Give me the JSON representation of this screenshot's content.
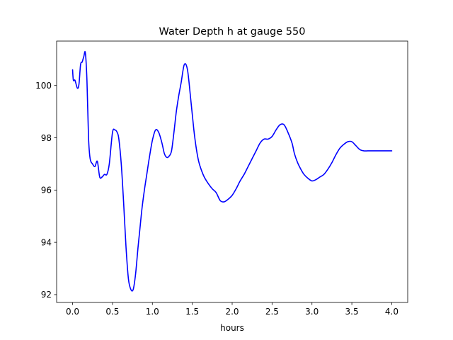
{
  "chart_data": {
    "type": "line",
    "title": "Water Depth h at gauge 550",
    "xlabel": "hours",
    "ylabel": "",
    "xlim": [
      -0.2,
      4.2
    ],
    "ylim": [
      91.7,
      101.7
    ],
    "x_ticks": [
      0.0,
      0.5,
      1.0,
      1.5,
      2.0,
      2.5,
      3.0,
      3.5,
      4.0
    ],
    "x_tick_labels": [
      "0.0",
      "0.5",
      "1.0",
      "1.5",
      "2.0",
      "2.5",
      "3.0",
      "3.5",
      "4.0"
    ],
    "y_ticks": [
      92,
      94,
      96,
      98,
      100
    ],
    "y_tick_labels": [
      "92",
      "94",
      "96",
      "98",
      "100"
    ],
    "grid": false,
    "legend": "none",
    "series": [
      {
        "color": "#0000ff",
        "x": [
          0.0,
          0.01,
          0.03,
          0.06,
          0.08,
          0.1,
          0.12,
          0.14,
          0.16,
          0.18,
          0.2,
          0.22,
          0.25,
          0.28,
          0.31,
          0.34,
          0.37,
          0.4,
          0.43,
          0.46,
          0.5,
          0.53,
          0.56,
          0.58,
          0.61,
          0.64,
          0.67,
          0.7,
          0.73,
          0.76,
          0.79,
          0.82,
          0.84,
          0.87,
          0.9,
          0.93,
          0.96,
          1.0,
          1.04,
          1.08,
          1.12,
          1.15,
          1.18,
          1.21,
          1.24,
          1.27,
          1.3,
          1.33,
          1.36,
          1.4,
          1.44,
          1.48,
          1.52,
          1.55,
          1.58,
          1.61,
          1.65,
          1.7,
          1.75,
          1.8,
          1.85,
          1.9,
          1.95,
          2.0,
          2.05,
          2.1,
          2.15,
          2.2,
          2.25,
          2.3,
          2.35,
          2.4,
          2.45,
          2.5,
          2.55,
          2.6,
          2.65,
          2.7,
          2.75,
          2.78,
          2.82,
          2.86,
          2.9,
          2.95,
          3.0,
          3.05,
          3.1,
          3.15,
          3.2,
          3.25,
          3.3,
          3.35,
          3.4,
          3.45,
          3.5,
          3.55,
          3.6,
          3.65,
          3.7,
          3.75,
          3.8,
          3.85,
          3.9,
          3.95,
          4.0
        ],
        "y": [
          100.6,
          100.2,
          100.2,
          99.9,
          100.05,
          100.8,
          100.9,
          101.1,
          101.25,
          100.2,
          98.0,
          97.2,
          97.0,
          96.9,
          97.1,
          96.5,
          96.5,
          96.6,
          96.6,
          97.0,
          98.2,
          98.3,
          98.2,
          97.95,
          97.0,
          95.5,
          93.8,
          92.6,
          92.2,
          92.2,
          92.8,
          93.8,
          94.4,
          95.3,
          96.0,
          96.6,
          97.2,
          97.9,
          98.3,
          98.2,
          97.8,
          97.4,
          97.25,
          97.3,
          97.5,
          98.2,
          99.0,
          99.6,
          100.1,
          100.8,
          100.6,
          99.5,
          98.3,
          97.6,
          97.1,
          96.8,
          96.5,
          96.25,
          96.05,
          95.9,
          95.6,
          95.55,
          95.65,
          95.8,
          96.05,
          96.35,
          96.6,
          96.9,
          97.2,
          97.5,
          97.8,
          97.95,
          97.95,
          98.05,
          98.3,
          98.5,
          98.5,
          98.2,
          97.8,
          97.4,
          97.05,
          96.8,
          96.6,
          96.45,
          96.35,
          96.4,
          96.5,
          96.6,
          96.8,
          97.05,
          97.35,
          97.6,
          97.75,
          97.85,
          97.85,
          97.7,
          97.55,
          97.5,
          97.5,
          97.5,
          97.5,
          97.5,
          97.5,
          97.5,
          97.5
        ]
      }
    ]
  }
}
